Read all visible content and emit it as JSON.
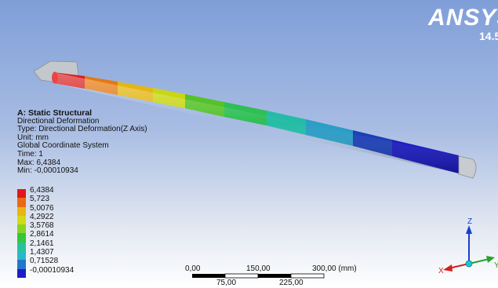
{
  "brand": {
    "name": "ANSYS",
    "version": "14.5"
  },
  "result": {
    "analysis": "A: Static Structural",
    "result_name": "Directional Deformation",
    "type": "Type: Directional Deformation(Z Axis)",
    "unit": "Unit: mm",
    "coordinate_system": "Global Coordinate System",
    "time": "Time: 1",
    "max": "Max: 6,4384",
    "min": "Min: -0,00010934"
  },
  "legend": [
    {
      "label": "6,4384",
      "color": "#e1171a"
    },
    {
      "label": "5,723",
      "color": "#ea6a11"
    },
    {
      "label": "5,0076",
      "color": "#e8b512"
    },
    {
      "label": "4,2922",
      "color": "#d3d913"
    },
    {
      "label": "3,5768",
      "color": "#88d420"
    },
    {
      "label": "2,8614",
      "color": "#35c639"
    },
    {
      "label": "2,1461",
      "color": "#26c39a"
    },
    {
      "label": "1,4307",
      "color": "#2ab8c8"
    },
    {
      "label": "0,71528",
      "color": "#2077cd"
    },
    {
      "label": "-0,00010934",
      "color": "#1d1dc9"
    }
  ],
  "scale_bar": {
    "labels_top": [
      "0,00",
      "150,00",
      "300,00 (mm)"
    ],
    "labels_bottom": [
      "75,00",
      "225,00"
    ]
  },
  "triad": {
    "x_label": "X",
    "y_label": "Y",
    "z_label": "Z"
  }
}
